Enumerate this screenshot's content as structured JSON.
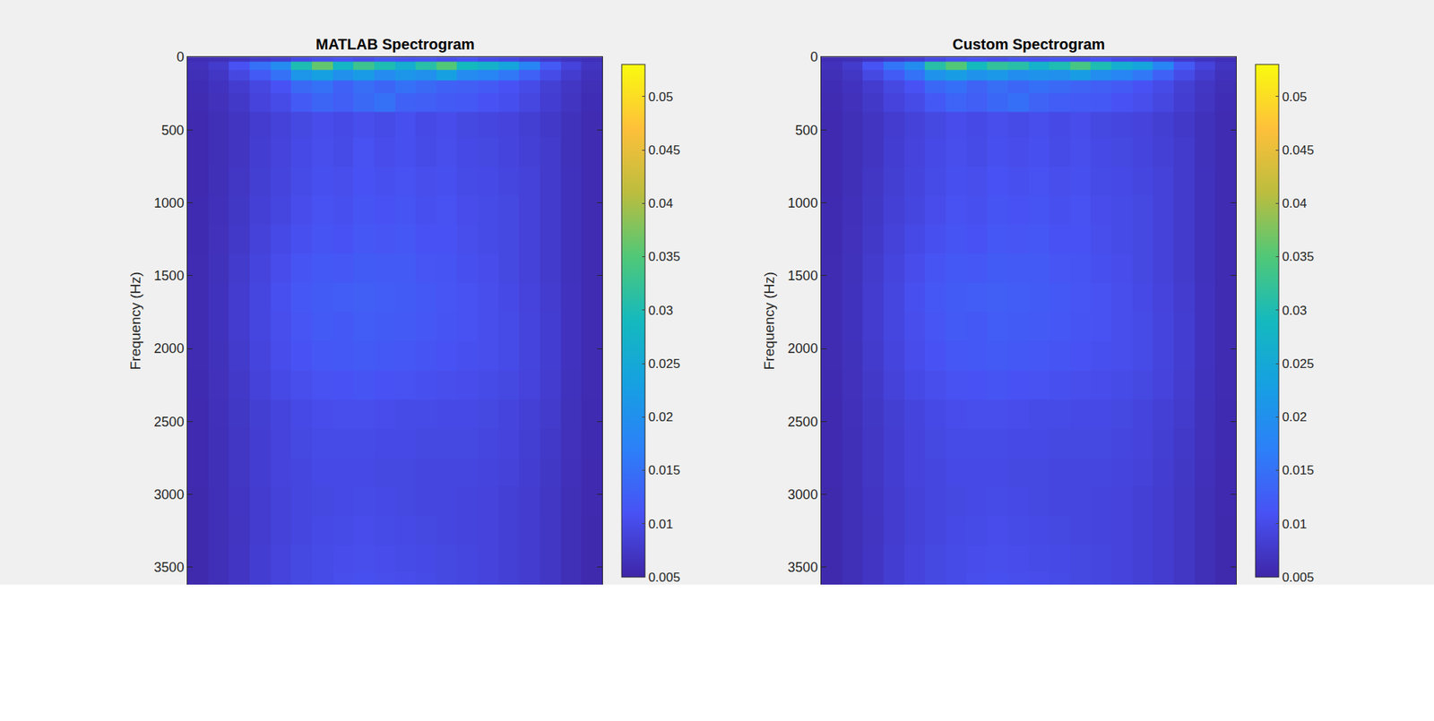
{
  "chart_data": [
    {
      "type": "heatmap",
      "title": "MATLAB Spectrogram",
      "y_label": "Frequency (Hz)",
      "tick_labels": "y",
      "ylim": [
        0,
        3620
      ],
      "yticks": [
        0,
        500,
        1000,
        1500,
        2000,
        2500,
        3000,
        3500
      ],
      "y": [
        0,
        60,
        120,
        200,
        300,
        450,
        650,
        850,
        1050,
        1250,
        1450,
        1650,
        1850,
        2050,
        2250,
        2450,
        2650,
        2850,
        3050,
        3250,
        3450,
        3620
      ],
      "colorbar": {
        "range": [
          0.005,
          0.053
        ],
        "ticks": [
          0.005,
          0.01,
          0.015,
          0.02,
          0.025,
          0.03,
          0.035,
          0.04,
          0.045,
          0.05
        ]
      },
      "cells": [
        [
          0.006,
          0.0062,
          0.0068,
          0.0075,
          0.0082,
          0.0098,
          0.0105,
          0.011,
          0.0102,
          0.0115,
          0.0108,
          0.0112,
          0.0104,
          0.011,
          0.01,
          0.0095,
          0.0085,
          0.0075,
          0.0068,
          0.0062
        ],
        [
          0.0065,
          0.0078,
          0.011,
          0.015,
          0.019,
          0.03,
          0.036,
          0.028,
          0.033,
          0.03,
          0.026,
          0.031,
          0.035,
          0.029,
          0.027,
          0.024,
          0.018,
          0.012,
          0.009,
          0.007
        ],
        [
          0.0062,
          0.0072,
          0.0095,
          0.012,
          0.015,
          0.021,
          0.023,
          0.02,
          0.022,
          0.019,
          0.021,
          0.02,
          0.023,
          0.019,
          0.018,
          0.016,
          0.013,
          0.01,
          0.008,
          0.0066
        ],
        [
          0.006,
          0.0068,
          0.008,
          0.0095,
          0.011,
          0.014,
          0.015,
          0.013,
          0.0145,
          0.0135,
          0.015,
          0.014,
          0.013,
          0.0125,
          0.012,
          0.011,
          0.01,
          0.0085,
          0.0072,
          0.0062
        ],
        [
          0.0058,
          0.0065,
          0.0076,
          0.009,
          0.01,
          0.012,
          0.0135,
          0.0125,
          0.014,
          0.015,
          0.013,
          0.0125,
          0.012,
          0.0118,
          0.011,
          0.0105,
          0.0095,
          0.0082,
          0.007,
          0.006
        ],
        [
          0.0056,
          0.0062,
          0.007,
          0.008,
          0.0088,
          0.0096,
          0.0102,
          0.0098,
          0.0104,
          0.01,
          0.0106,
          0.0098,
          0.0102,
          0.0096,
          0.0094,
          0.009,
          0.0084,
          0.0076,
          0.0066,
          0.0058
        ],
        [
          0.0056,
          0.0062,
          0.007,
          0.0082,
          0.009,
          0.0098,
          0.0104,
          0.01,
          0.0108,
          0.0102,
          0.0106,
          0.01,
          0.0104,
          0.0098,
          0.0096,
          0.0092,
          0.0086,
          0.0078,
          0.0066,
          0.0058
        ],
        [
          0.0056,
          0.0063,
          0.0072,
          0.0084,
          0.0092,
          0.01,
          0.0106,
          0.0104,
          0.011,
          0.0106,
          0.0108,
          0.0104,
          0.0106,
          0.01,
          0.0098,
          0.0094,
          0.0088,
          0.0078,
          0.0067,
          0.0058
        ],
        [
          0.0057,
          0.0064,
          0.0074,
          0.0086,
          0.0094,
          0.0102,
          0.0108,
          0.0106,
          0.0112,
          0.011,
          0.0112,
          0.0106,
          0.0108,
          0.0102,
          0.01,
          0.0096,
          0.0088,
          0.0078,
          0.0067,
          0.0058
        ],
        [
          0.0057,
          0.0065,
          0.0076,
          0.0088,
          0.0098,
          0.0106,
          0.0112,
          0.011,
          0.0116,
          0.0114,
          0.0116,
          0.011,
          0.011,
          0.0104,
          0.01,
          0.0096,
          0.0088,
          0.0078,
          0.0067,
          0.0058
        ],
        [
          0.0058,
          0.0066,
          0.0078,
          0.0092,
          0.0102,
          0.0112,
          0.0118,
          0.0116,
          0.0122,
          0.012,
          0.012,
          0.0114,
          0.0112,
          0.0106,
          0.0102,
          0.0096,
          0.0088,
          0.0078,
          0.0067,
          0.0058
        ],
        [
          0.0058,
          0.0067,
          0.008,
          0.0094,
          0.0106,
          0.0116,
          0.0122,
          0.0124,
          0.0126,
          0.0124,
          0.0122,
          0.0118,
          0.0114,
          0.0108,
          0.0104,
          0.0098,
          0.009,
          0.008,
          0.0068,
          0.0058
        ],
        [
          0.0058,
          0.0067,
          0.008,
          0.0094,
          0.0104,
          0.0114,
          0.012,
          0.0118,
          0.0124,
          0.0122,
          0.012,
          0.0116,
          0.0112,
          0.0108,
          0.0104,
          0.01,
          0.0092,
          0.0082,
          0.0068,
          0.0058
        ],
        [
          0.0058,
          0.0066,
          0.0078,
          0.0092,
          0.0102,
          0.011,
          0.0116,
          0.0118,
          0.012,
          0.0118,
          0.0116,
          0.0112,
          0.011,
          0.0106,
          0.0104,
          0.01,
          0.0092,
          0.0082,
          0.0068,
          0.0058
        ],
        [
          0.0057,
          0.0065,
          0.0076,
          0.0088,
          0.0098,
          0.0104,
          0.0108,
          0.011,
          0.0112,
          0.011,
          0.0108,
          0.0106,
          0.0104,
          0.0102,
          0.01,
          0.0096,
          0.009,
          0.008,
          0.0067,
          0.0058
        ],
        [
          0.0056,
          0.0064,
          0.0074,
          0.0084,
          0.0092,
          0.0098,
          0.0102,
          0.0104,
          0.0104,
          0.0102,
          0.01,
          0.01,
          0.0098,
          0.0098,
          0.0096,
          0.0092,
          0.0086,
          0.0078,
          0.0066,
          0.0057
        ],
        [
          0.0056,
          0.0063,
          0.0072,
          0.0082,
          0.009,
          0.0096,
          0.01,
          0.01,
          0.01,
          0.0098,
          0.0098,
          0.0096,
          0.0096,
          0.0096,
          0.0094,
          0.009,
          0.0084,
          0.0076,
          0.0065,
          0.0057
        ],
        [
          0.0056,
          0.0063,
          0.0072,
          0.0082,
          0.009,
          0.0094,
          0.0098,
          0.0098,
          0.0098,
          0.0096,
          0.0096,
          0.0094,
          0.0094,
          0.0094,
          0.0092,
          0.0088,
          0.0082,
          0.0074,
          0.0064,
          0.0056
        ],
        [
          0.0055,
          0.0062,
          0.0071,
          0.008,
          0.0088,
          0.0094,
          0.0096,
          0.0098,
          0.01,
          0.0098,
          0.0096,
          0.0094,
          0.0094,
          0.0092,
          0.009,
          0.0086,
          0.008,
          0.0073,
          0.0063,
          0.0056
        ],
        [
          0.0055,
          0.0062,
          0.007,
          0.008,
          0.0088,
          0.0094,
          0.0098,
          0.01,
          0.0102,
          0.01,
          0.0098,
          0.0096,
          0.0094,
          0.0092,
          0.009,
          0.0086,
          0.008,
          0.0072,
          0.0063,
          0.0055
        ],
        [
          0.0055,
          0.0062,
          0.0071,
          0.0082,
          0.009,
          0.0096,
          0.01,
          0.0102,
          0.0104,
          0.0102,
          0.01,
          0.0098,
          0.0096,
          0.0094,
          0.009,
          0.0086,
          0.008,
          0.0072,
          0.0063,
          0.0055
        ],
        [
          0.0055,
          0.0062,
          0.0071,
          0.0082,
          0.009,
          0.0096,
          0.01,
          0.0104,
          0.0106,
          0.0104,
          0.0102,
          0.01,
          0.0096,
          0.0094,
          0.009,
          0.0086,
          0.008,
          0.0072,
          0.0063,
          0.0055
        ]
      ]
    },
    {
      "type": "heatmap",
      "title": "Custom Spectrogram",
      "y_label": "Frequency (Hz)",
      "tick_labels": "y",
      "ylim": [
        0,
        3620
      ],
      "yticks": [
        0,
        500,
        1000,
        1500,
        2000,
        2500,
        3000,
        3500
      ],
      "y": [
        0,
        60,
        120,
        200,
        300,
        450,
        650,
        850,
        1050,
        1250,
        1450,
        1650,
        1850,
        2050,
        2250,
        2450,
        2650,
        2850,
        3050,
        3250,
        3450,
        3620
      ],
      "colorbar": {
        "range": [
          0.005,
          0.053
        ],
        "ticks": [
          0.005,
          0.01,
          0.015,
          0.02,
          0.025,
          0.03,
          0.035,
          0.04,
          0.045,
          0.05
        ]
      },
      "cells": [
        [
          0.006,
          0.0062,
          0.0068,
          0.0076,
          0.0082,
          0.0096,
          0.0106,
          0.011,
          0.0104,
          0.0114,
          0.0108,
          0.0112,
          0.0106,
          0.011,
          0.01,
          0.0095,
          0.0085,
          0.0075,
          0.0068,
          0.0062
        ],
        [
          0.0065,
          0.0078,
          0.0112,
          0.0155,
          0.0195,
          0.031,
          0.035,
          0.029,
          0.032,
          0.031,
          0.027,
          0.03,
          0.034,
          0.03,
          0.026,
          0.024,
          0.018,
          0.012,
          0.009,
          0.007
        ],
        [
          0.0062,
          0.0072,
          0.0096,
          0.0122,
          0.0152,
          0.0205,
          0.0225,
          0.0205,
          0.0215,
          0.0195,
          0.0205,
          0.02,
          0.0225,
          0.0195,
          0.018,
          0.016,
          0.013,
          0.01,
          0.008,
          0.0066
        ],
        [
          0.006,
          0.0068,
          0.008,
          0.0096,
          0.011,
          0.0138,
          0.0148,
          0.0132,
          0.0145,
          0.0136,
          0.0148,
          0.014,
          0.0132,
          0.0125,
          0.012,
          0.011,
          0.01,
          0.0085,
          0.0072,
          0.0062
        ],
        [
          0.0058,
          0.0065,
          0.0076,
          0.009,
          0.01,
          0.0118,
          0.0134,
          0.0126,
          0.0138,
          0.0148,
          0.0132,
          0.0124,
          0.012,
          0.0118,
          0.011,
          0.0104,
          0.0095,
          0.0082,
          0.007,
          0.006
        ],
        [
          0.0056,
          0.0062,
          0.007,
          0.008,
          0.0088,
          0.0096,
          0.0102,
          0.0098,
          0.0104,
          0.01,
          0.0104,
          0.0098,
          0.0102,
          0.0096,
          0.0094,
          0.009,
          0.0084,
          0.0076,
          0.0066,
          0.0058
        ],
        [
          0.0056,
          0.0062,
          0.007,
          0.0082,
          0.009,
          0.0098,
          0.0104,
          0.01,
          0.0106,
          0.0102,
          0.0106,
          0.01,
          0.0104,
          0.0098,
          0.0096,
          0.0092,
          0.0086,
          0.0078,
          0.0066,
          0.0058
        ],
        [
          0.0056,
          0.0063,
          0.0072,
          0.0084,
          0.0092,
          0.01,
          0.0106,
          0.0104,
          0.011,
          0.0106,
          0.0108,
          0.0104,
          0.0106,
          0.01,
          0.0098,
          0.0094,
          0.0088,
          0.0078,
          0.0067,
          0.0058
        ],
        [
          0.0057,
          0.0064,
          0.0074,
          0.0086,
          0.0094,
          0.0102,
          0.0108,
          0.0106,
          0.0112,
          0.011,
          0.0112,
          0.0106,
          0.0108,
          0.0102,
          0.01,
          0.0096,
          0.0088,
          0.0078,
          0.0067,
          0.0058
        ],
        [
          0.0057,
          0.0065,
          0.0076,
          0.0088,
          0.0098,
          0.0106,
          0.0112,
          0.011,
          0.0116,
          0.0114,
          0.0116,
          0.011,
          0.011,
          0.0104,
          0.01,
          0.0096,
          0.0088,
          0.0078,
          0.0067,
          0.0058
        ],
        [
          0.0058,
          0.0066,
          0.0078,
          0.0092,
          0.0102,
          0.0112,
          0.0118,
          0.0116,
          0.0122,
          0.012,
          0.012,
          0.0114,
          0.0112,
          0.0106,
          0.0102,
          0.0096,
          0.0088,
          0.0078,
          0.0067,
          0.0058
        ],
        [
          0.0058,
          0.0067,
          0.008,
          0.0094,
          0.0106,
          0.0116,
          0.0122,
          0.0124,
          0.0126,
          0.0124,
          0.0122,
          0.0118,
          0.0114,
          0.0108,
          0.0104,
          0.0098,
          0.009,
          0.008,
          0.0068,
          0.0058
        ],
        [
          0.0058,
          0.0067,
          0.008,
          0.0094,
          0.0104,
          0.0114,
          0.012,
          0.0118,
          0.0124,
          0.0122,
          0.012,
          0.0116,
          0.0112,
          0.0108,
          0.0104,
          0.01,
          0.0092,
          0.0082,
          0.0068,
          0.0058
        ],
        [
          0.0058,
          0.0066,
          0.0078,
          0.0092,
          0.0102,
          0.011,
          0.0116,
          0.0118,
          0.012,
          0.0118,
          0.0116,
          0.0112,
          0.011,
          0.0106,
          0.0104,
          0.01,
          0.0092,
          0.0082,
          0.0068,
          0.0058
        ],
        [
          0.0057,
          0.0065,
          0.0076,
          0.0088,
          0.0098,
          0.0104,
          0.0108,
          0.011,
          0.0112,
          0.011,
          0.0108,
          0.0106,
          0.0104,
          0.0102,
          0.01,
          0.0096,
          0.009,
          0.008,
          0.0067,
          0.0058
        ],
        [
          0.0056,
          0.0064,
          0.0074,
          0.0084,
          0.0092,
          0.0098,
          0.0102,
          0.0104,
          0.0104,
          0.0102,
          0.01,
          0.01,
          0.0098,
          0.0098,
          0.0096,
          0.0092,
          0.0086,
          0.0078,
          0.0066,
          0.0057
        ],
        [
          0.0056,
          0.0063,
          0.0072,
          0.0082,
          0.009,
          0.0096,
          0.01,
          0.01,
          0.01,
          0.0098,
          0.0098,
          0.0096,
          0.0096,
          0.0096,
          0.0094,
          0.009,
          0.0084,
          0.0076,
          0.0065,
          0.0057
        ],
        [
          0.0056,
          0.0063,
          0.0072,
          0.0082,
          0.009,
          0.0094,
          0.0098,
          0.0098,
          0.0098,
          0.0096,
          0.0096,
          0.0094,
          0.0094,
          0.0094,
          0.0092,
          0.0088,
          0.0082,
          0.0074,
          0.0064,
          0.0056
        ],
        [
          0.0055,
          0.0062,
          0.0071,
          0.008,
          0.0088,
          0.0094,
          0.0096,
          0.0098,
          0.01,
          0.0098,
          0.0096,
          0.0094,
          0.0094,
          0.0092,
          0.009,
          0.0086,
          0.008,
          0.0073,
          0.0063,
          0.0056
        ],
        [
          0.0055,
          0.0062,
          0.007,
          0.008,
          0.0088,
          0.0094,
          0.0098,
          0.01,
          0.0102,
          0.01,
          0.0098,
          0.0096,
          0.0094,
          0.0092,
          0.009,
          0.0086,
          0.008,
          0.0072,
          0.0063,
          0.0055
        ],
        [
          0.0055,
          0.0062,
          0.0071,
          0.0082,
          0.009,
          0.0096,
          0.01,
          0.0102,
          0.0104,
          0.0102,
          0.01,
          0.0098,
          0.0096,
          0.0094,
          0.009,
          0.0086,
          0.008,
          0.0072,
          0.0063,
          0.0055
        ],
        [
          0.0055,
          0.0062,
          0.0071,
          0.0082,
          0.009,
          0.0096,
          0.01,
          0.0104,
          0.0106,
          0.0104,
          0.0102,
          0.01,
          0.0096,
          0.0094,
          0.009,
          0.0086,
          0.008,
          0.0072,
          0.0063,
          0.0055
        ]
      ]
    }
  ]
}
